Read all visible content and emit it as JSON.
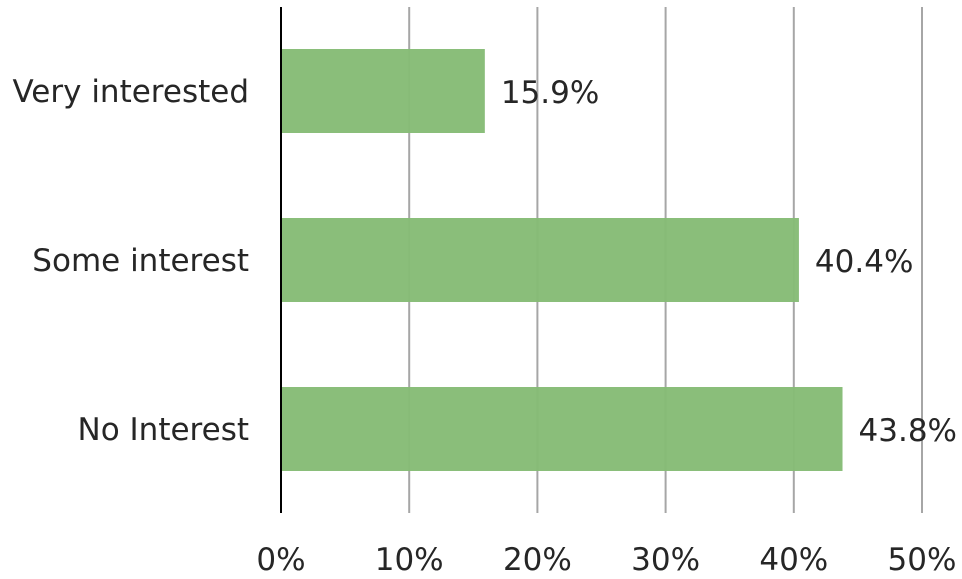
{
  "chart_data": {
    "type": "bar",
    "orientation": "horizontal",
    "categories": [
      "Very interested",
      "Some interest",
      "No Interest"
    ],
    "values": [
      15.9,
      40.4,
      43.8
    ],
    "value_labels": [
      "15.9%",
      "40.4%",
      "43.8%"
    ],
    "xlim": [
      0,
      50
    ],
    "x_ticks": [
      0,
      10,
      20,
      30,
      40,
      50
    ],
    "x_tick_labels": [
      "0%",
      "10%",
      "20%",
      "30%",
      "40%",
      "50%"
    ],
    "grid": "vertical",
    "legend": "none",
    "bar_color": "#85bb75",
    "grid_color": "#a6a6a6",
    "axis_color": "#000000"
  }
}
